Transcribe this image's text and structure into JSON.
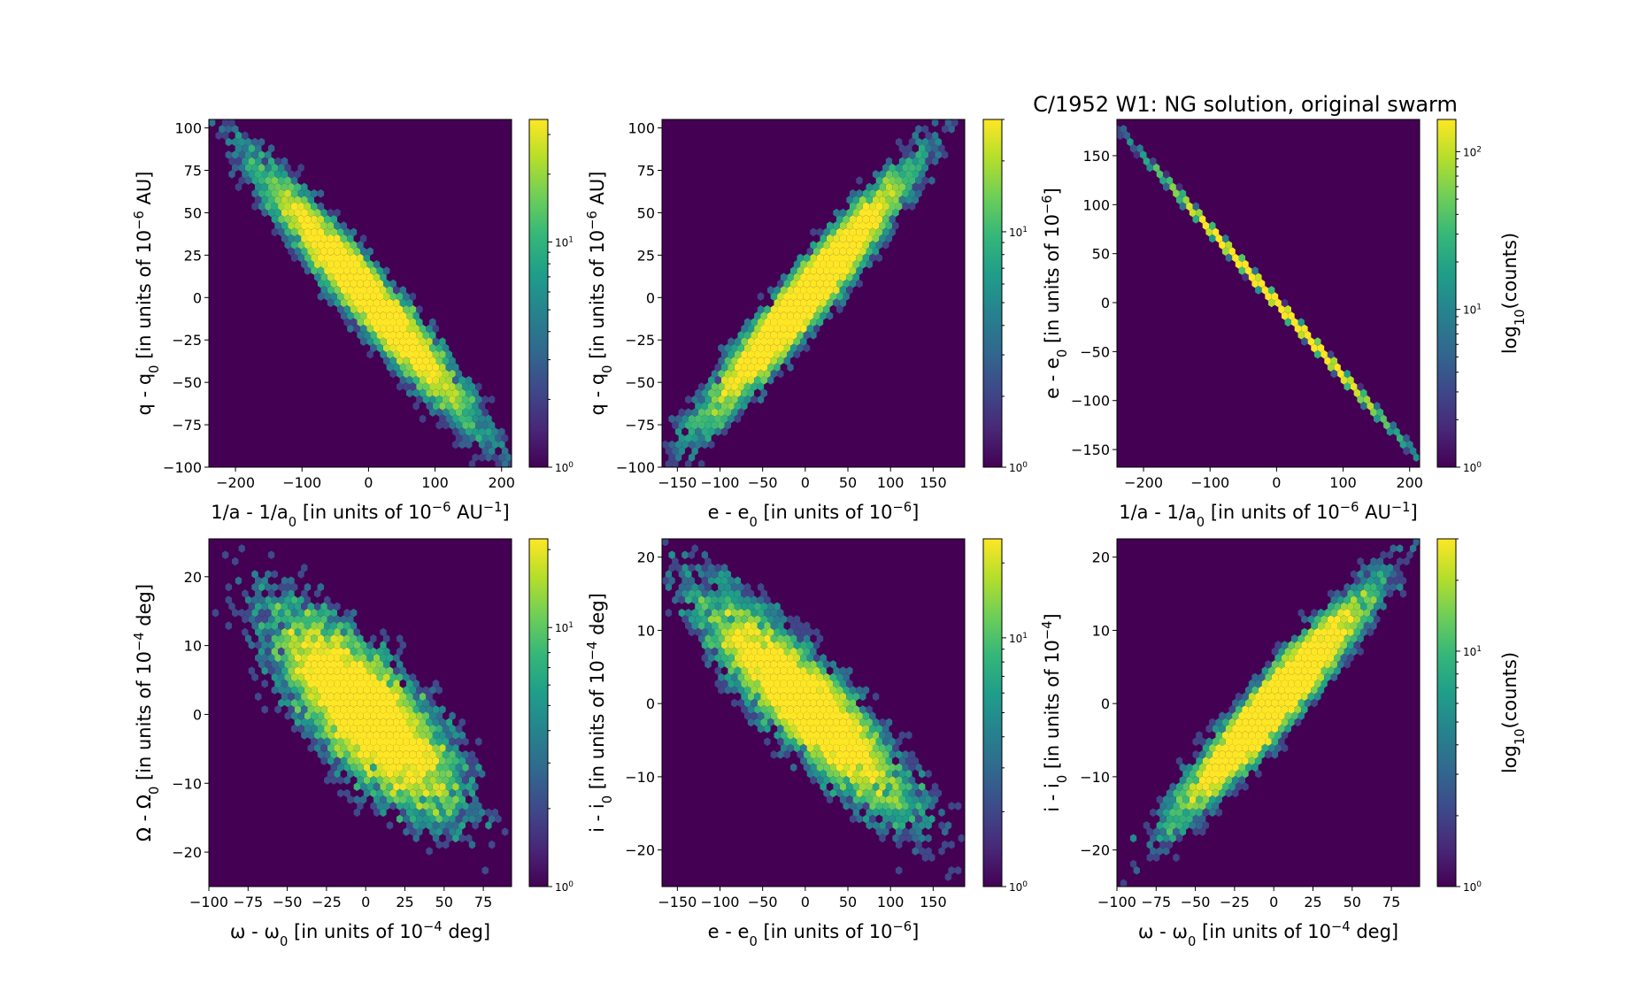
{
  "title": "C/1952 W1:  NG solution, original swarm",
  "colormap": {
    "name": "viridis",
    "stops": [
      "#440154",
      "#482878",
      "#3e4989",
      "#31688e",
      "#26828e",
      "#1f9e89",
      "#35b779",
      "#6ece58",
      "#b5de2b",
      "#fde725"
    ]
  },
  "chart_data": [
    {
      "type": "hexbin",
      "panel": "top-left",
      "x": {
        "label": "1/a - 1/a",
        "sub": "0",
        "tail": " [in units of 10",
        "sup": "−6",
        "end": " AU",
        "sup2": "−1",
        "end2": "]",
        "lim": [
          -240,
          215
        ],
        "ticks": [
          -200,
          -100,
          0,
          100,
          200
        ],
        "tick_labels": [
          "−200",
          "−100",
          "0",
          "100",
          "200"
        ]
      },
      "y": {
        "label": "q - q",
        "sub": "0",
        "tail": " [in units of 10",
        "sup": "−6",
        "end": " AU]",
        "lim": [
          -100,
          105
        ],
        "ticks": [
          -100,
          -75,
          -50,
          -25,
          0,
          25,
          50,
          75,
          100
        ],
        "tick_labels": [
          "−100",
          "−75",
          "−50",
          "−25",
          "0",
          "25",
          "50",
          "75",
          "100"
        ]
      },
      "distribution": {
        "mean": [
          0,
          0
        ],
        "std": [
          80,
          37
        ],
        "corr": -0.96
      },
      "colorbar": {
        "max": 35,
        "ticks": [
          {
            "v": 1,
            "base": "10",
            "exp": "0"
          },
          {
            "v": 10,
            "base": "10",
            "exp": "1"
          }
        ],
        "label": ""
      }
    },
    {
      "type": "hexbin",
      "panel": "top-middle",
      "x": {
        "label": "e - e",
        "sub": "0",
        "tail": " [in units of 10",
        "sup": "−6",
        "end": "]",
        "lim": [
          -168,
          187
        ],
        "ticks": [
          -150,
          -100,
          -50,
          0,
          50,
          100,
          150
        ],
        "tick_labels": [
          "−150",
          "−100",
          "−50",
          "0",
          "50",
          "100",
          "150"
        ]
      },
      "y": {
        "label": "q - q",
        "sub": "0",
        "tail": " [in units of 10",
        "sup": "−6",
        "end": " AU]",
        "lim": [
          -100,
          105
        ],
        "ticks": [
          -100,
          -75,
          -50,
          -25,
          0,
          25,
          50,
          75,
          100
        ],
        "tick_labels": [
          "−100",
          "−75",
          "−50",
          "−25",
          "0",
          "25",
          "50",
          "75",
          "100"
        ]
      },
      "distribution": {
        "mean": [
          0,
          0
        ],
        "std": [
          60,
          37
        ],
        "corr": 0.96
      },
      "colorbar": {
        "max": 30,
        "ticks": [
          {
            "v": 1,
            "base": "10",
            "exp": "0"
          },
          {
            "v": 10,
            "base": "10",
            "exp": "1"
          }
        ],
        "label": ""
      }
    },
    {
      "type": "hexbin",
      "panel": "top-right",
      "x": {
        "label": "1/a - 1/a",
        "sub": "0",
        "tail": " [in units of 10",
        "sup": "−6",
        "end": " AU",
        "sup2": "−1",
        "end2": "]",
        "lim": [
          -240,
          215
        ],
        "ticks": [
          -200,
          -100,
          0,
          100,
          200
        ],
        "tick_labels": [
          "−200",
          "−100",
          "0",
          "100",
          "200"
        ]
      },
      "y": {
        "label": "e - e",
        "sub": "0",
        "tail": " [in units of 10",
        "sup": "−6",
        "end": "]",
        "lim": [
          -168,
          187
        ],
        "ticks": [
          -150,
          -100,
          -50,
          0,
          50,
          100,
          150
        ],
        "tick_labels": [
          "−150",
          "−100",
          "−50",
          "0",
          "50",
          "100",
          "150"
        ]
      },
      "distribution": {
        "mean": [
          0,
          0
        ],
        "std": [
          80,
          60
        ],
        "corr": -0.9998
      },
      "colorbar": {
        "max": 160,
        "ticks": [
          {
            "v": 1,
            "base": "10",
            "exp": "0"
          },
          {
            "v": 10,
            "base": "10",
            "exp": "1"
          },
          {
            "v": 100,
            "base": "10",
            "exp": "2"
          }
        ],
        "label": "log",
        "label_sub": "10",
        "label_tail": "(counts)"
      }
    },
    {
      "type": "hexbin",
      "panel": "bottom-left",
      "x": {
        "label": "ω - ω",
        "sub": "0",
        "tail": " [in units of 10",
        "sup": "−4",
        "end": " deg]",
        "lim": [
          -100,
          93
        ],
        "ticks": [
          -100,
          -75,
          -50,
          -25,
          0,
          25,
          50,
          75
        ],
        "tick_labels": [
          "−100",
          "−75",
          "−50",
          "−25",
          "0",
          "25",
          "50",
          "75"
        ]
      },
      "y": {
        "label": "Ω - Ω",
        "sub": "0",
        "tail": " [in units of 10",
        "sup": "−4",
        "end": " deg]",
        "lim": [
          -25,
          25.5
        ],
        "ticks": [
          -20,
          -10,
          0,
          10,
          20
        ],
        "tick_labels": [
          "−20",
          "−10",
          "0",
          "10",
          "20"
        ]
      },
      "distribution": {
        "mean": [
          0,
          0
        ],
        "std": [
          30,
          7.5
        ],
        "corr": -0.75
      },
      "colorbar": {
        "max": 22,
        "ticks": [
          {
            "v": 1,
            "base": "10",
            "exp": "0"
          },
          {
            "v": 10,
            "base": "10",
            "exp": "1"
          }
        ],
        "label": ""
      }
    },
    {
      "type": "hexbin",
      "panel": "bottom-middle",
      "x": {
        "label": "e - e",
        "sub": "0",
        "tail": " [in units of 10",
        "sup": "−6",
        "end": "]",
        "lim": [
          -168,
          187
        ],
        "ticks": [
          -150,
          -100,
          -50,
          0,
          50,
          100,
          150
        ],
        "tick_labels": [
          "−150",
          "−100",
          "−50",
          "0",
          "50",
          "100",
          "150"
        ]
      },
      "y": {
        "label": "i - i",
        "sub": "0",
        "tail": " [in units of 10",
        "sup": "−4",
        "end": " deg]",
        "lim": [
          -25,
          22.5
        ],
        "ticks": [
          -20,
          -10,
          0,
          10,
          20
        ],
        "tick_labels": [
          "−20",
          "−10",
          "0",
          "10",
          "20"
        ]
      },
      "distribution": {
        "mean": [
          0,
          0
        ],
        "std": [
          60,
          7.5
        ],
        "corr": -0.87
      },
      "colorbar": {
        "max": 25,
        "ticks": [
          {
            "v": 1,
            "base": "10",
            "exp": "0"
          },
          {
            "v": 10,
            "base": "10",
            "exp": "1"
          }
        ],
        "label": ""
      }
    },
    {
      "type": "hexbin",
      "panel": "bottom-right",
      "x": {
        "label": "ω - ω",
        "sub": "0",
        "tail": " [in units of 10",
        "sup": "−4",
        "end": " deg]",
        "lim": [
          -100,
          93
        ],
        "ticks": [
          -100,
          -75,
          -50,
          -25,
          0,
          25,
          50,
          75
        ],
        "tick_labels": [
          "−100",
          "−75",
          "−50",
          "−25",
          "0",
          "25",
          "50",
          "75"
        ]
      },
      "y": {
        "label": "i - i",
        "sub": "0",
        "tail": " [in units of 10",
        "sup": "−4",
        "end": "]",
        "lim": [
          -25,
          22.5
        ],
        "ticks": [
          -20,
          -10,
          0,
          10,
          20
        ],
        "tick_labels": [
          "−20",
          "−10",
          "0",
          "10",
          "20"
        ]
      },
      "distribution": {
        "mean": [
          0,
          0
        ],
        "std": [
          30,
          7.5
        ],
        "corr": 0.95
      },
      "colorbar": {
        "max": 30,
        "ticks": [
          {
            "v": 1,
            "base": "10",
            "exp": "0"
          },
          {
            "v": 10,
            "base": "10",
            "exp": "1"
          }
        ],
        "label": "log",
        "label_sub": "10",
        "label_tail": "(counts)"
      }
    }
  ]
}
